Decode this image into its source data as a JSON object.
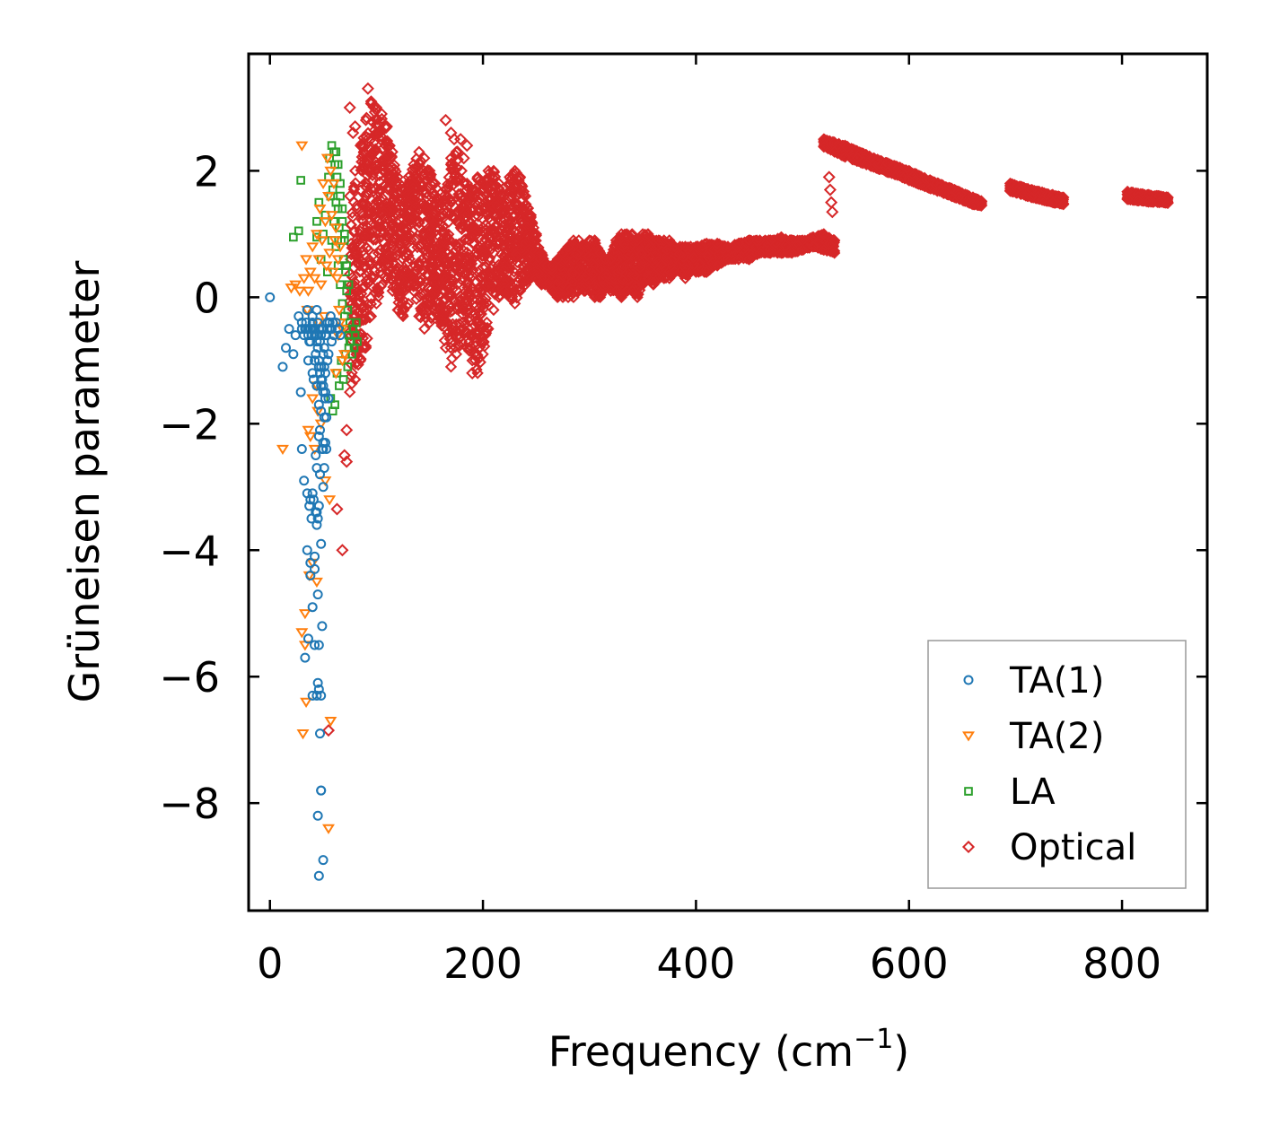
{
  "chart_data": {
    "type": "scatter",
    "title": "",
    "xlabel": "Frequency (cm",
    "xlabel_sup": "−1",
    "xlabel_close": ")",
    "ylabel": "Grüneisen parameter",
    "xlim": [
      -20,
      880
    ],
    "ylim": [
      -9.7,
      3.85
    ],
    "xticks": [
      0,
      200,
      400,
      600,
      800
    ],
    "xtick_labels": [
      "0",
      "200",
      "400",
      "600",
      "800"
    ],
    "yticks": [
      -8,
      -6,
      -4,
      -2,
      0,
      2
    ],
    "ytick_labels": [
      "−8",
      "−6",
      "−4",
      "−2",
      "0",
      "2"
    ],
    "grid": false,
    "legend_position": "lower-right",
    "series": [
      {
        "name": "TA(1)",
        "marker": "circle",
        "color": "#1f77b4",
        "x": [
          0,
          12,
          15,
          18,
          22,
          24,
          27,
          29,
          30,
          32,
          33,
          35,
          36,
          37,
          38,
          39,
          40,
          40,
          41,
          42,
          42,
          43,
          43,
          44,
          44,
          45,
          45,
          45,
          46,
          46,
          46,
          47,
          47,
          47,
          48,
          48,
          48,
          49,
          49,
          49,
          50,
          50,
          50,
          51,
          51,
          52,
          52,
          53,
          53,
          54,
          55,
          55,
          56,
          57,
          58,
          59,
          60,
          30,
          33,
          35,
          38,
          40,
          42,
          44,
          45,
          46,
          48,
          50,
          36,
          38,
          40,
          42,
          44,
          46,
          48,
          35,
          37,
          39,
          41,
          43,
          45,
          47,
          30,
          32,
          34,
          36,
          38,
          40,
          42,
          44,
          45,
          46,
          47,
          48,
          49,
          50,
          51,
          52,
          44,
          46,
          48,
          50,
          51,
          53,
          34,
          36,
          38,
          40,
          42,
          44,
          46,
          48,
          50,
          52,
          54,
          56,
          58,
          60,
          62,
          64,
          66,
          40,
          42,
          44,
          46,
          48,
          50,
          52,
          54
        ],
        "y": [
          0,
          -1.1,
          -0.8,
          -0.5,
          -0.9,
          -0.6,
          -0.3,
          -1.5,
          -0.4,
          -2.9,
          -0.5,
          -0.2,
          -1.0,
          -0.7,
          -3.2,
          -0.6,
          -0.3,
          -3.1,
          -1.3,
          -0.5,
          -4.3,
          -0.9,
          -2.5,
          -0.2,
          -3.4,
          -0.4,
          -4.7,
          -6.1,
          -1.7,
          -3.3,
          -5.5,
          -0.7,
          -2.1,
          -6.9,
          -1.1,
          -3.9,
          -7.8,
          -0.5,
          -2.4,
          -5.2,
          -1.4,
          -3.0,
          -8.9,
          -0.8,
          -2.7,
          -1.2,
          -2.3,
          -0.6,
          -1.9,
          -0.4,
          -0.9,
          -1.6,
          -0.5,
          -0.3,
          -0.7,
          -0.4,
          -0.6,
          -2.4,
          -5.7,
          -4.0,
          -4.4,
          -6.3,
          -4.1,
          -3.6,
          -8.2,
          -6.2,
          -6.3,
          -2.4,
          -5.4,
          -4.2,
          -4.9,
          -5.5,
          -6.3,
          -9.15,
          -7.8,
          -3.1,
          -3.3,
          -3.5,
          -3.2,
          -3.4,
          -3.5,
          -2.8,
          -0.5,
          -0.6,
          -0.5,
          -0.6,
          -0.7,
          -0.5,
          -0.6,
          -0.7,
          -0.8,
          -1.0,
          -1.2,
          -1.4,
          -1.3,
          -1.5,
          -1.1,
          -1.6,
          -2.7,
          -2.2,
          -1.8,
          -2.3,
          -1.9,
          -2.4,
          -0.4,
          -0.5,
          -0.5,
          -0.4,
          -0.5,
          -0.6,
          -0.5,
          -0.6,
          -0.5,
          -0.6,
          -0.5,
          -0.4,
          -0.5,
          -0.6,
          -0.4,
          -0.5,
          -0.6,
          -1.2,
          -1.0,
          -1.4,
          -1.1,
          -1.3,
          -0.9,
          -1.5,
          -1.0
        ]
      },
      {
        "name": "TA(2)",
        "marker": "triangle-down",
        "color": "#ff7f0e",
        "x": [
          12,
          20,
          24,
          28,
          30,
          32,
          34,
          35,
          36,
          38,
          40,
          41,
          42,
          44,
          45,
          46,
          47,
          48,
          49,
          50,
          51,
          52,
          53,
          54,
          55,
          56,
          57,
          58,
          59,
          60,
          61,
          62,
          63,
          64,
          65,
          66,
          68,
          70,
          30,
          33,
          37,
          40,
          44,
          48,
          52,
          56,
          34,
          38,
          42,
          36,
          40,
          44,
          31,
          33,
          45,
          55,
          57,
          62,
          64,
          66,
          68
        ],
        "y": [
          -2.4,
          0.15,
          0.2,
          0.1,
          2.4,
          0.3,
          0.6,
          -0.2,
          0.1,
          0.4,
          0.8,
          -0.5,
          0.3,
          1.0,
          -0.4,
          0.6,
          1.4,
          0.2,
          0.9,
          1.8,
          -0.3,
          1.2,
          0.5,
          2.2,
          1.6,
          0.7,
          2.0,
          1.3,
          0.4,
          1.8,
          0.9,
          1.1,
          0.3,
          0.6,
          -0.2,
          0.8,
          -0.5,
          -0.9,
          -5.3,
          -5.0,
          -4.4,
          -4.2,
          -4.5,
          -2.0,
          -2.9,
          -3.2,
          -6.4,
          -2.2,
          -2.4,
          -2.1,
          -1.6,
          -1.4,
          -6.9,
          -5.5,
          -1.8,
          -8.4,
          -6.7,
          -1.2,
          -0.6,
          -0.4,
          -1.0
        ]
      },
      {
        "name": "LA",
        "marker": "square",
        "color": "#2ca02c",
        "x": [
          22,
          27,
          29,
          44,
          44,
          46,
          48,
          50,
          52,
          54,
          55,
          56,
          57,
          58,
          58,
          59,
          60,
          60,
          61,
          62,
          62,
          63,
          64,
          64,
          65,
          66,
          66,
          67,
          68,
          68,
          69,
          70,
          70,
          71,
          72,
          72,
          73,
          74,
          74,
          75,
          76,
          77,
          78,
          79,
          80,
          81,
          82,
          57,
          59,
          61,
          63,
          65,
          67,
          69,
          71,
          73,
          75,
          62,
          64,
          66,
          68,
          70,
          72,
          74
        ],
        "y": [
          0.95,
          1.05,
          1.85,
          1.2,
          0.95,
          1.5,
          0.6,
          1.0,
          1.3,
          0.4,
          1.9,
          2.2,
          1.6,
          2.4,
          0.9,
          1.7,
          2.3,
          1.2,
          2.1,
          1.5,
          0.8,
          1.9,
          1.4,
          0.5,
          1.1,
          1.6,
          0.2,
          0.9,
          1.2,
          -0.1,
          0.6,
          0.9,
          -0.3,
          0.4,
          0.1,
          -0.5,
          -0.2,
          -0.6,
          -0.8,
          -0.4,
          -0.7,
          -0.9,
          -0.5,
          -0.8,
          -0.6,
          -0.4,
          -0.7,
          -1.6,
          -1.8,
          -1.7,
          -1.2,
          -1.4,
          -1.0,
          -1.3,
          -0.9,
          -1.1,
          -0.7,
          2.3,
          2.1,
          1.8,
          1.4,
          1.0,
          0.5,
          0.2
        ]
      },
      {
        "name": "Optical",
        "marker": "diamond",
        "color": "#d62728",
        "outliers_x": [
          55,
          63,
          68,
          70,
          72,
          72,
          75,
          78,
          80,
          92,
          165,
          170,
          173,
          176,
          179,
          182,
          185,
          188,
          190,
          525,
          526,
          527,
          528
        ],
        "outliers_y": [
          -6.85,
          -3.35,
          -4.0,
          -2.5,
          -2.6,
          -2.1,
          3.0,
          2.6,
          2.7,
          3.3,
          2.8,
          2.6,
          2.5,
          2.3,
          2.5,
          2.2,
          2.4,
          1.5,
          -1.2,
          1.9,
          1.7,
          1.5,
          1.35
        ],
        "band_segments": [
          {
            "x": [
              75,
              80,
              85,
              90,
              95,
              100,
              105,
              110,
              115,
              120,
              125,
              130,
              135,
              140,
              145,
              150,
              155,
              160,
              165,
              170,
              175,
              180,
              185,
              190,
              195,
              200,
              205,
              210,
              215,
              220,
              225,
              230,
              235,
              240,
              245,
              250,
              255,
              260,
              265,
              270,
              275,
              280,
              285,
              290,
              295,
              300,
              305,
              310,
              315,
              320,
              325,
              330,
              335,
              340,
              345,
              350,
              355,
              360,
              365,
              370,
              375,
              380,
              385,
              390,
              395,
              400,
              410,
              420,
              430,
              440,
              450,
              460,
              470,
              480,
              490,
              500,
              510,
              520,
              530
            ],
            "upper": [
              1.6,
              2.0,
              2.4,
              2.8,
              3.1,
              3.0,
              2.9,
              2.7,
              2.3,
              1.9,
              1.7,
              1.9,
              2.1,
              2.3,
              2.2,
              2.0,
              1.8,
              1.5,
              1.7,
              2.2,
              2.3,
              2.0,
              1.8,
              1.7,
              1.9,
              1.8,
              2.0,
              2.0,
              1.8,
              1.6,
              1.9,
              2.0,
              1.9,
              1.6,
              1.3,
              1.0,
              0.7,
              0.5,
              0.5,
              0.6,
              0.7,
              0.8,
              0.9,
              0.9,
              0.8,
              0.9,
              0.9,
              0.7,
              0.6,
              0.6,
              0.9,
              1.0,
              1.0,
              1.0,
              0.9,
              1.0,
              1.0,
              0.9,
              0.9,
              0.9,
              0.9,
              0.8,
              0.8,
              0.8,
              0.8,
              0.8,
              0.85,
              0.85,
              0.8,
              0.85,
              0.9,
              0.9,
              0.9,
              0.95,
              0.9,
              0.9,
              0.95,
              1.0,
              0.9
            ],
            "lower": [
              -1.5,
              -1.3,
              -1.0,
              -0.8,
              -0.3,
              -0.1,
              0.2,
              0.3,
              0.1,
              -0.2,
              -0.3,
              -0.1,
              0.1,
              -0.3,
              -0.5,
              -0.4,
              -0.2,
              -0.4,
              -0.8,
              -1.1,
              -0.9,
              -0.7,
              -0.8,
              -1.0,
              -1.2,
              -0.9,
              -0.5,
              -0.2,
              0.0,
              0.1,
              0.0,
              -0.1,
              0.1,
              0.2,
              0.3,
              0.3,
              0.2,
              0.2,
              0.1,
              0.0,
              0.0,
              0.0,
              0.0,
              0.1,
              0.1,
              0.1,
              0.0,
              0.0,
              0.2,
              0.1,
              0.1,
              0.0,
              0.1,
              0.1,
              0.0,
              0.2,
              0.3,
              0.2,
              0.3,
              0.3,
              0.3,
              0.4,
              0.4,
              0.3,
              0.4,
              0.4,
              0.4,
              0.5,
              0.6,
              0.6,
              0.6,
              0.7,
              0.7,
              0.7,
              0.7,
              0.75,
              0.8,
              0.75,
              0.7
            ]
          },
          {
            "x": [
              520,
              530,
              540,
              560,
              580,
              600,
              620,
              640,
              660,
              668
            ],
            "upper": [
              2.5,
              2.45,
              2.4,
              2.25,
              2.12,
              2.0,
              1.85,
              1.72,
              1.58,
              1.52
            ],
            "lower": [
              2.38,
              2.3,
              2.22,
              2.1,
              1.98,
              1.85,
              1.72,
              1.6,
              1.47,
              1.45
            ]
          },
          {
            "x": [
              695,
              705,
              715,
              725,
              735,
              745
            ],
            "upper": [
              1.8,
              1.75,
              1.7,
              1.66,
              1.62,
              1.58
            ],
            "lower": [
              1.68,
              1.63,
              1.58,
              1.54,
              1.5,
              1.47
            ]
          },
          {
            "x": [
              805,
              815,
              825,
              835,
              843
            ],
            "upper": [
              1.67,
              1.64,
              1.62,
              1.6,
              1.58
            ],
            "lower": [
              1.55,
              1.53,
              1.51,
              1.5,
              1.49
            ]
          }
        ]
      }
    ]
  }
}
